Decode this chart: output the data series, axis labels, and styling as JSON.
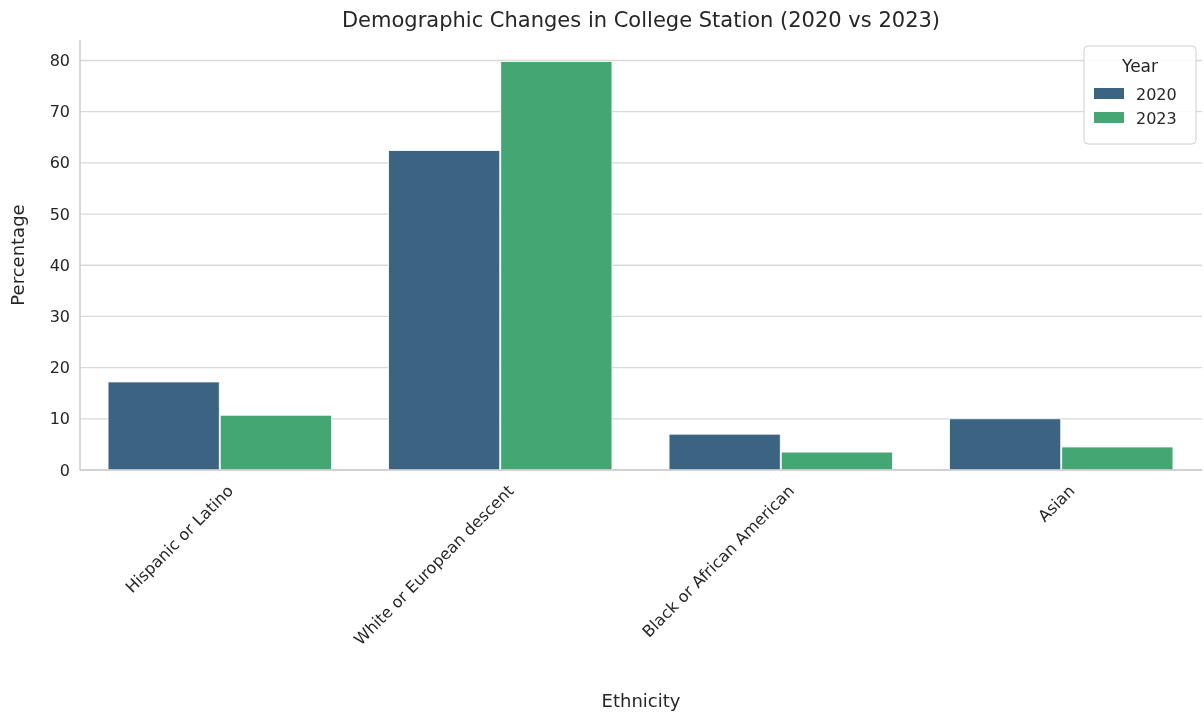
{
  "chart_data": {
    "type": "bar",
    "title": "Demographic Changes in College Station (2020 vs 2023)",
    "xlabel": "Ethnicity",
    "ylabel": "Percentage",
    "legend_title": "Year",
    "categories": [
      "Hispanic or Latino",
      "White or European descent",
      "Black or African American",
      "Asian"
    ],
    "series": [
      {
        "name": "2020",
        "color": "#3b6482",
        "values": [
          17.2,
          62.4,
          7.0,
          10.0
        ]
      },
      {
        "name": "2023",
        "color": "#44a673",
        "values": [
          10.7,
          79.8,
          3.5,
          4.5
        ]
      }
    ],
    "ylim": [
      0,
      84
    ],
    "yticks": [
      0,
      10,
      20,
      30,
      40,
      50,
      60,
      70,
      80
    ],
    "grid": "y",
    "legend": "top right"
  }
}
